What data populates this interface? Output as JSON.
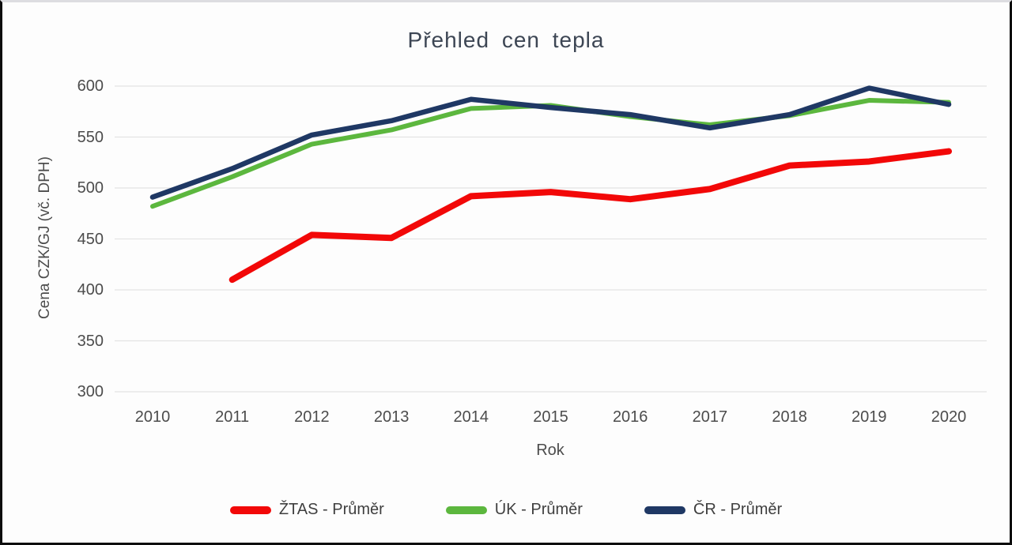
{
  "chart_data": {
    "type": "line",
    "title": "Přehled cen tepla",
    "xlabel": "Rok",
    "ylabel": "Cena CZK/GJ (vč. DPH)",
    "categories": [
      "2010",
      "2011",
      "2012",
      "2013",
      "2014",
      "2015",
      "2016",
      "2017",
      "2018",
      "2019",
      "2020"
    ],
    "y_ticks": [
      300,
      350,
      400,
      450,
      500,
      550,
      600
    ],
    "ylim": [
      300,
      600
    ],
    "grid": true,
    "gridline_color": "#e4e4e4",
    "legend_position": "bottom",
    "series": [
      {
        "name": "ŽTAS - Průměr",
        "color": "#f20808",
        "values": [
          null,
          410,
          454,
          451,
          492,
          496,
          489,
          499,
          522,
          526,
          536
        ]
      },
      {
        "name": "ÚK - Průměr",
        "color": "#5cb73e",
        "values": [
          482,
          511,
          543,
          557,
          578,
          581,
          570,
          562,
          571,
          586,
          584
        ]
      },
      {
        "name": "ČR - Průměr",
        "color": "#1f3864",
        "values": [
          491,
          519,
          552,
          566,
          587,
          579,
          572,
          559,
          572,
          598,
          582
        ]
      }
    ]
  }
}
